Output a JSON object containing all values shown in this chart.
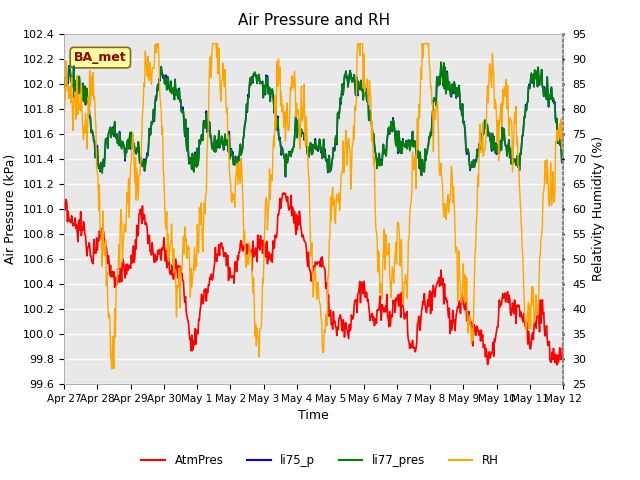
{
  "title": "Air Pressure and RH",
  "xlabel": "Time",
  "ylabel_left": "Air Pressure (kPa)",
  "ylabel_right": "Relativity Humidity (%)",
  "ylim_left": [
    99.6,
    102.4
  ],
  "ylim_right": [
    25,
    95
  ],
  "yticks_left": [
    99.6,
    99.8,
    100.0,
    100.2,
    100.4,
    100.6,
    100.8,
    101.0,
    101.2,
    101.4,
    101.6,
    101.8,
    102.0,
    102.2,
    102.4
  ],
  "yticks_right": [
    25,
    30,
    35,
    40,
    45,
    50,
    55,
    60,
    65,
    70,
    75,
    80,
    85,
    90,
    95
  ],
  "bg_color": "#ffffff",
  "plot_bg_color": "#e8e8e8",
  "grid_color": "#ffffff",
  "legend_labels": [
    "AtmPres",
    "li75_p",
    "li77_pres",
    "RH"
  ],
  "legend_colors": [
    "red",
    "blue",
    "green",
    "orange"
  ],
  "annotation_text": "BA_met",
  "annotation_bg": "#ffffa0",
  "annotation_border": "#8b6914",
  "title_fontsize": 11,
  "axis_fontsize": 9,
  "tick_fontsize": 8
}
